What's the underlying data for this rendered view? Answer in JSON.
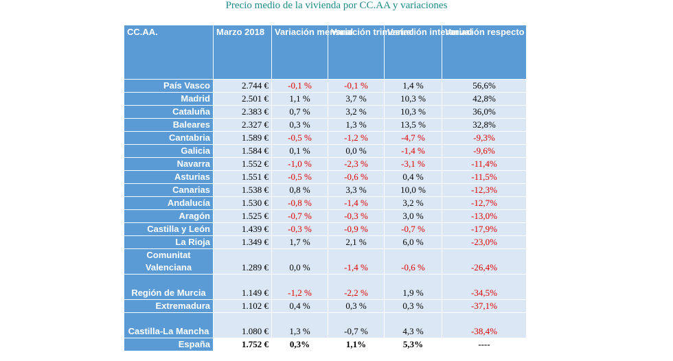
{
  "title": "Precio medio de la vivienda por CC.AA y variaciones",
  "table": {
    "headers": [
      "CC.AA.",
      "Marzo 2018",
      "Variación mensual",
      "Variación trimestral",
      "Variación interanual",
      "Variación respecto media nacional"
    ],
    "rows": [
      {
        "region": "País Vasco",
        "price": "2.744 €",
        "mensual": "-0,1 %",
        "trimestral": "-0,1 %",
        "interanual": "1,4 %",
        "media": "56,6%"
      },
      {
        "region": "Madrid",
        "price": "2.501 €",
        "mensual": "1,1 %",
        "trimestral": "3,7 %",
        "interanual": "10,3 %",
        "media": "42,8%"
      },
      {
        "region": "Cataluña",
        "price": "2.383 €",
        "mensual": "0,7 %",
        "trimestral": "3,2 %",
        "interanual": "10,3 %",
        "media": "36,0%"
      },
      {
        "region": "Baleares",
        "price": "2.327 €",
        "mensual": "0,3 %",
        "trimestral": "1,3 %",
        "interanual": "13,5 %",
        "media": "32,8%"
      },
      {
        "region": "Cantabria",
        "price": "1.589 €",
        "mensual": "-0,5 %",
        "trimestral": "-1,2 %",
        "interanual": "-4,7 %",
        "media": "-9,3%"
      },
      {
        "region": "Galicia",
        "price": "1.584 €",
        "mensual": "0,1 %",
        "trimestral": "0,0 %",
        "interanual": "-1,4 %",
        "media": "-9,6%"
      },
      {
        "region": "Navarra",
        "price": "1.552 €",
        "mensual": "-1,0 %",
        "trimestral": "-2,3 %",
        "interanual": "-3,1 %",
        "media": "-11,4%"
      },
      {
        "region": "Asturias",
        "price": "1.551 €",
        "mensual": "-0,5 %",
        "trimestral": "-0,6 %",
        "interanual": "0,4 %",
        "media": "-11,5%"
      },
      {
        "region": "Canarias",
        "price": "1.538 €",
        "mensual": "0,8 %",
        "trimestral": "3,3 %",
        "interanual": "10,0 %",
        "media": "-12,3%"
      },
      {
        "region": "Andalucía",
        "price": "1.530 €",
        "mensual": "-0,8 %",
        "trimestral": "-1,4 %",
        "interanual": "3,2 %",
        "media": "-12,7%"
      },
      {
        "region": "Aragón",
        "price": "1.525 €",
        "mensual": "-0,7 %",
        "trimestral": "-0,3 %",
        "interanual": "3,0 %",
        "media": "-13,0%"
      },
      {
        "region": "Castilla y León",
        "price": "1.439 €",
        "mensual": "-0,3 %",
        "trimestral": "-0,9 %",
        "interanual": "-0,7 %",
        "media": "-17,9%"
      },
      {
        "region": "La Rioja",
        "price": "1.349 €",
        "mensual": "1,7 %",
        "trimestral": "2,1 %",
        "interanual": "6,0 %",
        "media": "-23,0%"
      },
      {
        "region": "Comunitat Valenciana",
        "price": "1.289 €",
        "mensual": "0,0 %",
        "trimestral": "-1,4 %",
        "interanual": "-0,6 %",
        "media": "-26,4%"
      },
      {
        "region": "Región de Murcia",
        "price": "1.149 €",
        "mensual": "-1,2 %",
        "trimestral": "-2,2 %",
        "interanual": "1,9 %",
        "media": "-34,5%"
      },
      {
        "region": "Extremadura",
        "price": "1.102 €",
        "mensual": "0,4 %",
        "trimestral": "0,3 %",
        "interanual": "0,3 %",
        "media": "-37,1%"
      },
      {
        "region": "Castilla-La Mancha",
        "price": "1.080 €",
        "mensual": "1,3 %",
        "trimestral": "-0,7 %",
        "interanual": "4,3 %",
        "media": "-38,4%"
      },
      {
        "region": "España",
        "price": "1.752 €",
        "mensual": "0,3%",
        "trimestral": "1,1%",
        "interanual": "5,3%",
        "media": "----"
      }
    ]
  },
  "colors": {
    "header_bg": "#5b9bd5",
    "cell_bg": "#dbe7f4",
    "negative_text": "#e00000",
    "title_text": "#1f8a8a"
  }
}
